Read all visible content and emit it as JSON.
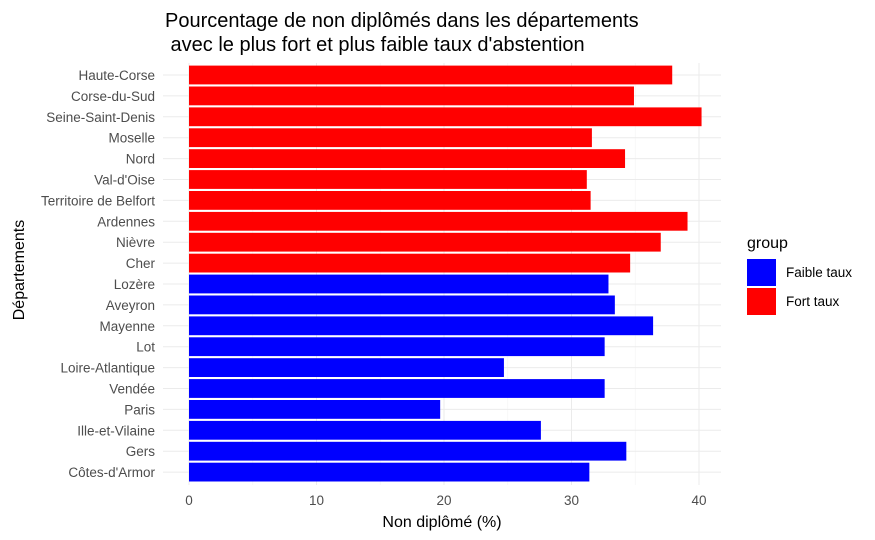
{
  "chart_data": {
    "type": "bar",
    "orientation": "horizontal",
    "title_line1": "Pourcentage de non diplômés dans les départements",
    "title_line2": " avec le plus fort et plus faible taux d'abstention",
    "xlabel": "Non diplômé (%)",
    "ylabel": "Départements",
    "xlim": [
      0,
      42
    ],
    "xticks": [
      0,
      10,
      20,
      30,
      40
    ],
    "grid": true,
    "legend": {
      "title": "group",
      "position": "right",
      "entries": [
        {
          "label": "Faible taux",
          "color": "#0000ff"
        },
        {
          "label": "Fort taux",
          "color": "#ff0000"
        }
      ]
    },
    "bars": [
      {
        "category": "Haute-Corse",
        "value": 37.9,
        "group": "Fort taux"
      },
      {
        "category": "Corse-du-Sud",
        "value": 34.9,
        "group": "Fort taux"
      },
      {
        "category": "Seine-Saint-Denis",
        "value": 40.2,
        "group": "Fort taux"
      },
      {
        "category": "Moselle",
        "value": 31.6,
        "group": "Fort taux"
      },
      {
        "category": "Nord",
        "value": 34.2,
        "group": "Fort taux"
      },
      {
        "category": "Val-d'Oise",
        "value": 31.2,
        "group": "Fort taux"
      },
      {
        "category": "Territoire de Belfort",
        "value": 31.5,
        "group": "Fort taux"
      },
      {
        "category": "Ardennes",
        "value": 39.1,
        "group": "Fort taux"
      },
      {
        "category": "Nièvre",
        "value": 37.0,
        "group": "Fort taux"
      },
      {
        "category": "Cher",
        "value": 34.6,
        "group": "Fort taux"
      },
      {
        "category": "Lozère",
        "value": 32.9,
        "group": "Faible taux"
      },
      {
        "category": "Aveyron",
        "value": 33.4,
        "group": "Faible taux"
      },
      {
        "category": "Mayenne",
        "value": 36.4,
        "group": "Faible taux"
      },
      {
        "category": "Lot",
        "value": 32.6,
        "group": "Faible taux"
      },
      {
        "category": "Loire-Atlantique",
        "value": 24.7,
        "group": "Faible taux"
      },
      {
        "category": "Vendée",
        "value": 32.6,
        "group": "Faible taux"
      },
      {
        "category": "Paris",
        "value": 19.7,
        "group": "Faible taux"
      },
      {
        "category": "Ille-et-Vilaine",
        "value": 27.6,
        "group": "Faible taux"
      },
      {
        "category": "Gers",
        "value": 34.3,
        "group": "Faible taux"
      },
      {
        "category": "Côtes-d'Armor",
        "value": 31.4,
        "group": "Faible taux"
      }
    ]
  }
}
